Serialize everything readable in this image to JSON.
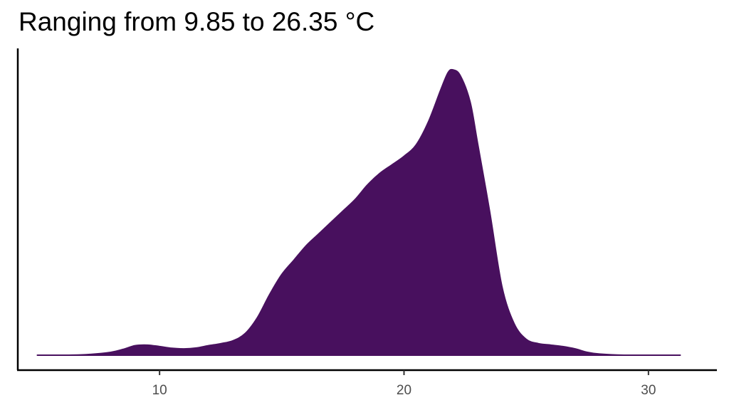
{
  "chart_data": {
    "type": "area",
    "subtype": "density",
    "title": "Ranging from 9.85 to 26.35 °C",
    "xlabel": "",
    "ylabel": "",
    "xlim": [
      4.2,
      32.8
    ],
    "ylim": [
      0,
      1.02
    ],
    "x_ticks": [
      10,
      20,
      30
    ],
    "y_ticks": [],
    "grid": false,
    "legend": "none",
    "fill_color": "#48105E",
    "series": [
      {
        "x": [
          5.0,
          6.0,
          7.0,
          8.0,
          8.5,
          9.0,
          9.5,
          10.0,
          10.5,
          11.0,
          11.5,
          12.0,
          12.5,
          13.0,
          13.5,
          14.0,
          14.5,
          15.0,
          15.5,
          16.0,
          16.5,
          17.0,
          17.5,
          18.0,
          18.5,
          19.0,
          19.5,
          20.0,
          20.5,
          21.0,
          21.5,
          21.8,
          22.0,
          22.3,
          22.7,
          23.0,
          23.5,
          24.0,
          24.5,
          25.0,
          25.5,
          26.0,
          26.5,
          27.0,
          27.5,
          28.0,
          29.0,
          30.0,
          31.3
        ],
        "y": [
          0.0,
          0.0,
          0.002,
          0.01,
          0.02,
          0.033,
          0.035,
          0.03,
          0.024,
          0.022,
          0.025,
          0.033,
          0.04,
          0.05,
          0.075,
          0.13,
          0.21,
          0.28,
          0.33,
          0.38,
          0.42,
          0.46,
          0.5,
          0.54,
          0.59,
          0.63,
          0.66,
          0.69,
          0.73,
          0.81,
          0.92,
          0.98,
          0.99,
          0.97,
          0.88,
          0.74,
          0.5,
          0.24,
          0.11,
          0.055,
          0.04,
          0.035,
          0.03,
          0.022,
          0.01,
          0.004,
          0.0,
          0.0,
          0.0
        ]
      }
    ]
  }
}
